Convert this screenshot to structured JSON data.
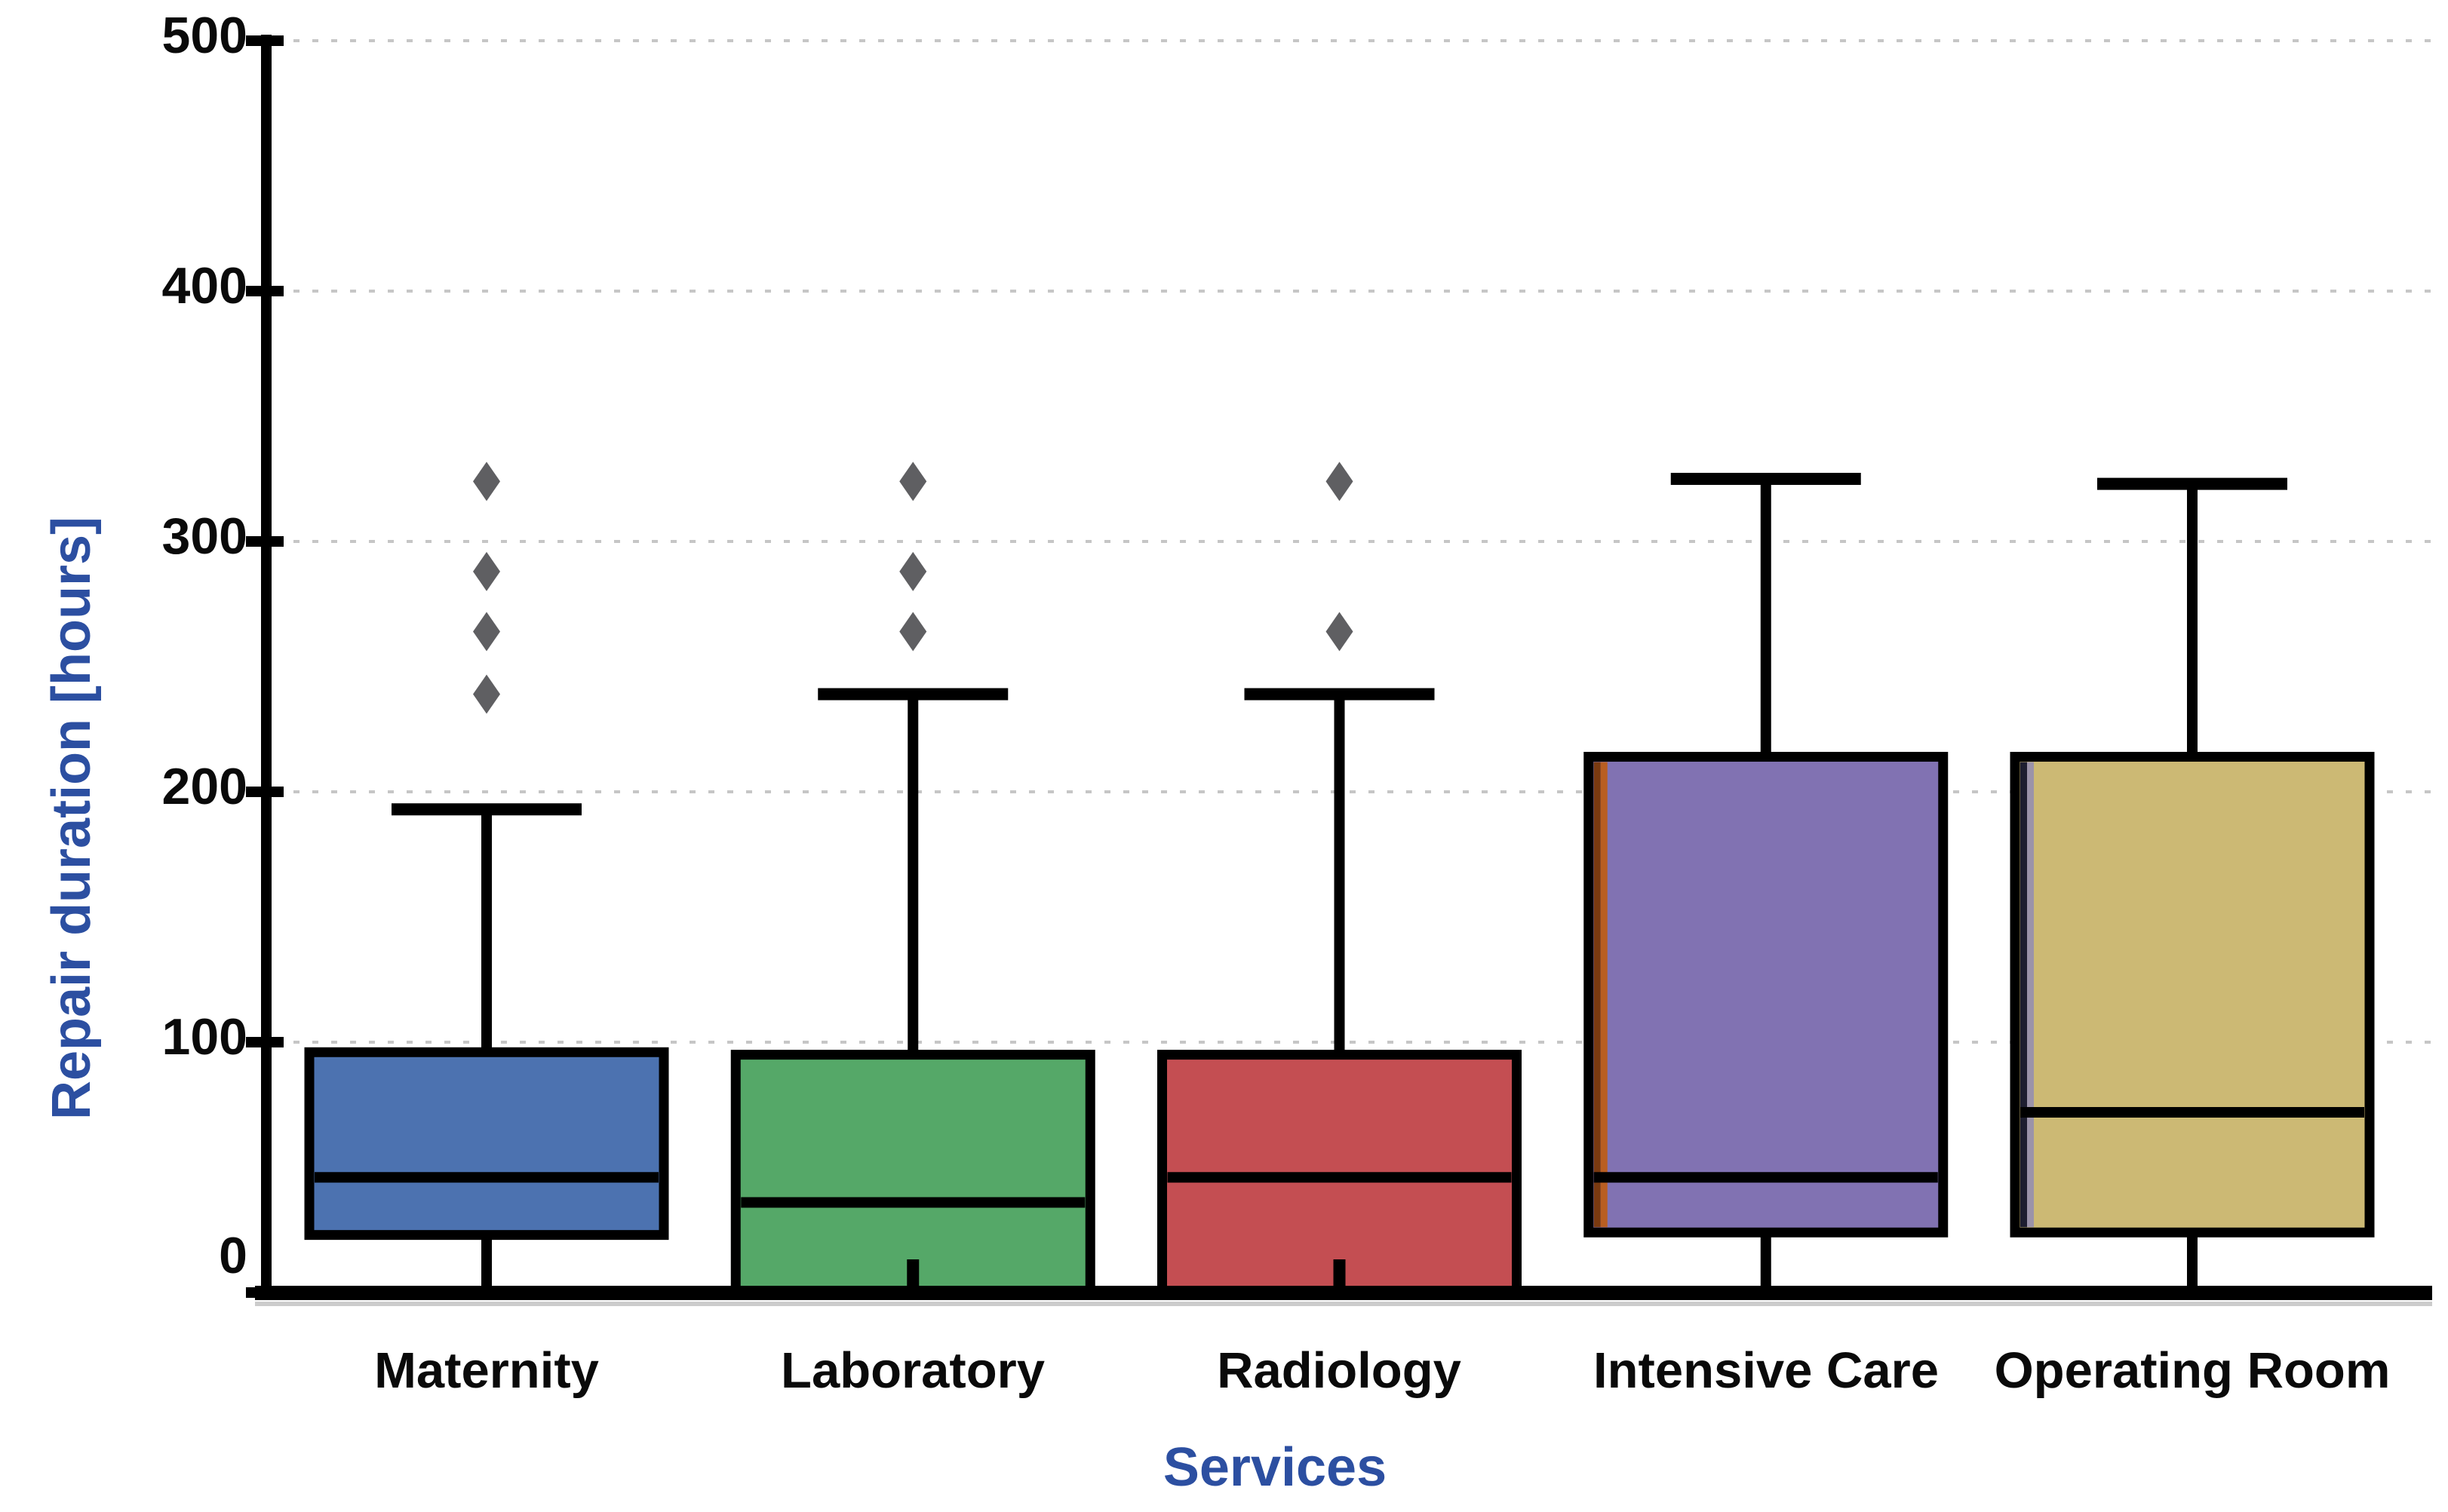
{
  "figure": {
    "background": "#ffffff",
    "axis_title_color": "#2C4FA1",
    "tick_label_color": "#0a0a0a",
    "spine_color": "#000000",
    "gridline_color": "#c6c6c6"
  },
  "chart_data": {
    "type": "box",
    "title": "",
    "xlabel": "Services",
    "ylabel": "Repair duration [hours]",
    "ylim": [
      0,
      507
    ],
    "yticks": [
      "0",
      "100",
      "200",
      "300",
      "400",
      "500"
    ],
    "ytick_values": [
      0,
      100,
      200,
      300,
      400,
      500
    ],
    "gridlines": [
      100,
      200,
      300,
      400,
      500
    ],
    "grid_style": "dotted horizontal",
    "legend_position": "none",
    "categories": [
      "Maternity",
      "Laboratory",
      "Radiology",
      "Intensive Care",
      "Operating Room"
    ],
    "series": [
      {
        "name": "Maternity",
        "color": "#4C72B0",
        "q1": 23,
        "median": 46,
        "q3": 96,
        "whisker_low": 0,
        "whisker_high": 193,
        "outliers": [
          239,
          264,
          288,
          324
        ]
      },
      {
        "name": "Laboratory",
        "color": "#55A868",
        "q1": 0,
        "median": 36,
        "q3": 95,
        "whisker_low": 0,
        "whisker_high": 239,
        "outliers": [
          264,
          288,
          324
        ]
      },
      {
        "name": "Radiology",
        "color": "#C44E52",
        "q1": 0,
        "median": 46,
        "q3": 95,
        "whisker_low": 0,
        "whisker_high": 239,
        "outliers": [
          264,
          324
        ]
      },
      {
        "name": "Intensive Care",
        "color": "#8172B2",
        "q1": 24,
        "median": 46,
        "q3": 214,
        "whisker_low": 0,
        "whisker_high": 325,
        "outliers": [],
        "left_edge_accents": [
          "#7A3A10",
          "#B95E22"
        ]
      },
      {
        "name": "Operating Room",
        "color": "#CCB974",
        "q1": 24,
        "median": 72,
        "q3": 214,
        "whisker_low": 0,
        "whisker_high": 323,
        "outliers": [],
        "left_edge_accents": [
          "#1E1E30",
          "#9B93A9"
        ]
      }
    ],
    "outlier_marker": "thin-diamond",
    "outlier_color": "#515155",
    "box_edge_color": "#000000",
    "median_color": "#000000"
  }
}
